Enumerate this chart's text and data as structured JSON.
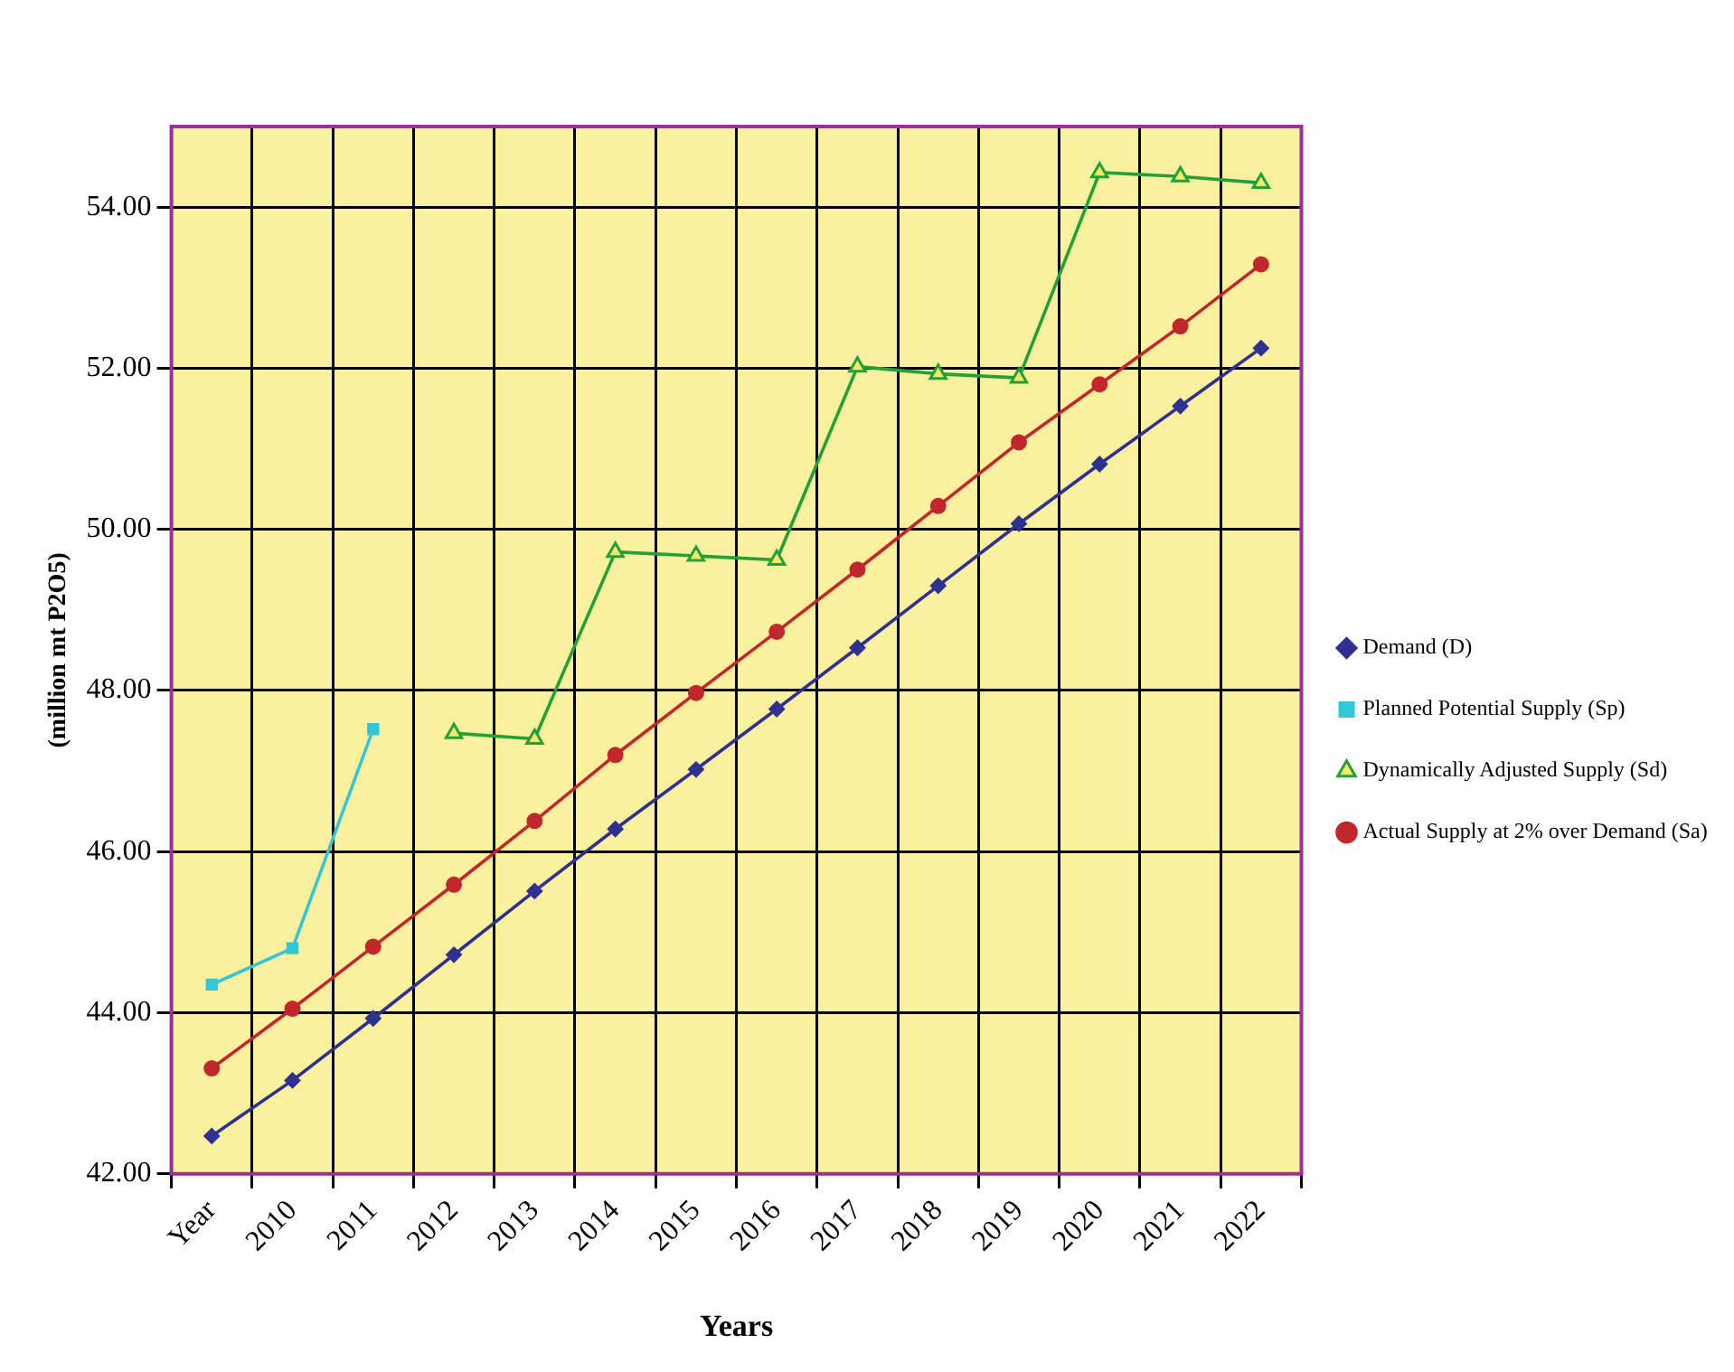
{
  "chart_data": {
    "type": "line",
    "xlabel": "Years",
    "ylabel": "(million mt P2O5)",
    "categories": [
      "Year",
      "2010",
      "2011",
      "2012",
      "2013",
      "2014",
      "2015",
      "2016",
      "2017",
      "2018",
      "2019",
      "2020",
      "2021",
      "2022"
    ],
    "ylim": [
      42,
      55
    ],
    "yticks": [
      {
        "value": 42,
        "label": "42.00"
      },
      {
        "value": 44,
        "label": "44.00"
      },
      {
        "value": 46,
        "label": "46.00"
      },
      {
        "value": 48,
        "label": "48.00"
      },
      {
        "value": 50,
        "label": "50.00"
      },
      {
        "value": 52,
        "label": "52.00"
      },
      {
        "value": 54,
        "label": "54.00"
      }
    ],
    "grid": true,
    "legend": "right",
    "series": [
      {
        "name": "Demand (D)",
        "color": "#2e3192",
        "marker": "diamond",
        "values": [
          42.47,
          43.16,
          43.93,
          44.72,
          45.51,
          46.28,
          47.02,
          47.77,
          48.53,
          49.3,
          50.07,
          50.81,
          51.53,
          52.25
        ]
      },
      {
        "name": "Planned Potential Supply (Sp)",
        "color": "#33c6d9",
        "marker": "square",
        "values": [
          44.35,
          44.8,
          47.52,
          null,
          null,
          null,
          null,
          null,
          null,
          null,
          null,
          null,
          null,
          null
        ]
      },
      {
        "name": "Dynamically Adjusted Supply (Sd)",
        "color": "#22a03a",
        "marker": "triangle",
        "values": [
          null,
          null,
          null,
          47.47,
          47.4,
          49.72,
          49.67,
          49.62,
          52.02,
          51.93,
          51.88,
          54.43,
          54.38,
          54.3
        ]
      },
      {
        "name": "Actual Supply at 2% over Demand (Sa)",
        "color": "#c1272d",
        "marker": "circle",
        "values": [
          43.31,
          44.05,
          44.82,
          45.59,
          46.38,
          47.2,
          47.97,
          48.73,
          49.5,
          50.29,
          51.08,
          51.8,
          52.52,
          53.29
        ]
      }
    ]
  }
}
